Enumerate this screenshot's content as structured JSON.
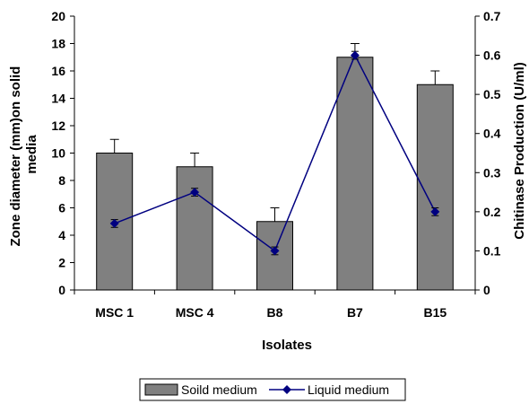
{
  "chart_data": {
    "type": "bar",
    "categories": [
      "MSC 1",
      "MSC 4",
      "B8",
      "B7",
      "B15"
    ],
    "xlabel": "Isolates",
    "ylabel_left_lines": [
      "Zone diameter (mm)on solid",
      "media"
    ],
    "ylabel_right": "Chitinase Production (U/ml)",
    "ylim_left": [
      0,
      20
    ],
    "yticks_left": [
      "0",
      "2",
      "4",
      "6",
      "8",
      "10",
      "12",
      "14",
      "16",
      "18",
      "20"
    ],
    "ylim_right": [
      0,
      0.7
    ],
    "yticks_right": [
      "0",
      "0.1",
      "0.2",
      "0.3",
      "0.4",
      "0.5",
      "0.6",
      "0.7"
    ],
    "grid": false,
    "legend_position": "bottom",
    "series": [
      {
        "name": "Soild medium",
        "type": "bar",
        "axis": "left",
        "values": [
          10,
          9,
          5,
          17,
          15
        ],
        "errors": [
          1,
          1,
          1,
          1,
          1
        ],
        "color": "#808080"
      },
      {
        "name": "Liquid medium",
        "type": "line",
        "axis": "right",
        "values": [
          0.17,
          0.25,
          0.1,
          0.6,
          0.2
        ],
        "errors": [
          0.01,
          0.01,
          0.01,
          0.01,
          0.01
        ],
        "color": "#000080"
      }
    ]
  }
}
